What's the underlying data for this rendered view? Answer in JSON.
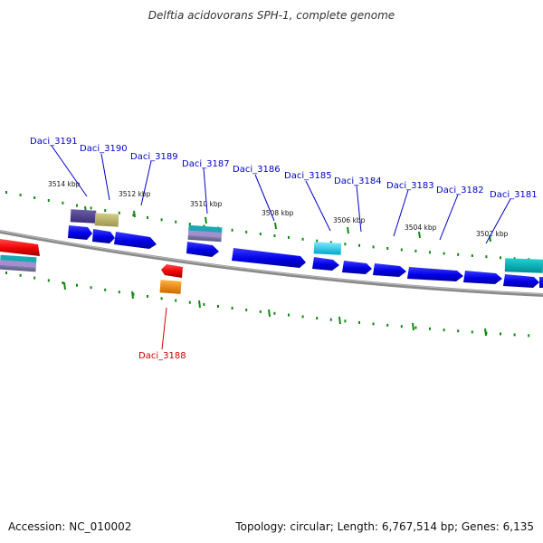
{
  "title": "Delftia acidovorans SPH-1, complete genome",
  "footer": {
    "accession": "Accession: NC_010002",
    "summary": "Topology: circular; Length: 6,767,514 bp; Genes: 6,135"
  },
  "colors": {
    "forward_gene": "#0000ee",
    "reverse_gene": "#ee0000",
    "backbone": "#888888",
    "tick": "#118811",
    "label_forward": "#0000cc",
    "label_reverse": "#cc0000"
  },
  "ticks": [
    {
      "label": "3514 kbp"
    },
    {
      "label": "3512 kbp"
    },
    {
      "label": "3510 kbp"
    },
    {
      "label": "3508 kbp"
    },
    {
      "label": "3506 kbp"
    },
    {
      "label": "3504 kbp"
    },
    {
      "label": "3502 kbp"
    }
  ],
  "gene_labels": [
    {
      "text": "Daci_3191",
      "strand": "forward"
    },
    {
      "text": "Daci_3190",
      "strand": "forward"
    },
    {
      "text": "Daci_3189",
      "strand": "forward"
    },
    {
      "text": "Daci_3187",
      "strand": "forward"
    },
    {
      "text": "Daci_3186",
      "strand": "forward"
    },
    {
      "text": "Daci_3185",
      "strand": "forward"
    },
    {
      "text": "Daci_3184",
      "strand": "forward"
    },
    {
      "text": "Daci_3183",
      "strand": "forward"
    },
    {
      "text": "Daci_3182",
      "strand": "forward"
    },
    {
      "text": "Daci_3181",
      "strand": "forward"
    },
    {
      "text": "Daci_3188",
      "strand": "reverse"
    }
  ]
}
